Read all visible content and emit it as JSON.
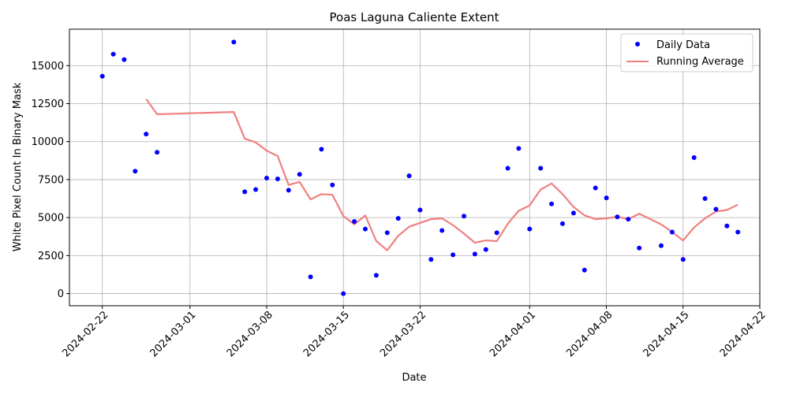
{
  "chart_data": {
    "type": "scatter",
    "title": "Poas Laguna Caliente Extent",
    "xlabel": "Date",
    "ylabel": "White Pixel Count In Binary Mask",
    "x_ticks": [
      "2024-02-22",
      "2024-03-01",
      "2024-03-08",
      "2024-03-15",
      "2024-03-22",
      "2024-04-01",
      "2024-04-08",
      "2024-04-15",
      "2024-04-22"
    ],
    "y_ticks": [
      0,
      2500,
      5000,
      7500,
      10000,
      12500,
      15000
    ],
    "xlim": [
      "2024-02-19",
      "2024-04-22"
    ],
    "ylim": [
      -800,
      17400
    ],
    "grid": true,
    "legend": {
      "placement": "top-right",
      "entries": [
        "Daily Data",
        "Running Average"
      ]
    },
    "series": [
      {
        "name": "Daily Data",
        "kind": "scatter",
        "color": "#0000ff",
        "points": [
          [
            "2024-02-22",
            14300
          ],
          [
            "2024-02-23",
            15750
          ],
          [
            "2024-02-24",
            15400
          ],
          [
            "2024-02-25",
            8050
          ],
          [
            "2024-02-26",
            10500
          ],
          [
            "2024-02-27",
            9300
          ],
          [
            "2024-03-05",
            16550
          ],
          [
            "2024-03-06",
            6700
          ],
          [
            "2024-03-07",
            6850
          ],
          [
            "2024-03-08",
            7600
          ],
          [
            "2024-03-09",
            7550
          ],
          [
            "2024-03-10",
            6800
          ],
          [
            "2024-03-11",
            7850
          ],
          [
            "2024-03-12",
            1100
          ],
          [
            "2024-03-13",
            9500
          ],
          [
            "2024-03-14",
            7150
          ],
          [
            "2024-03-15",
            0
          ],
          [
            "2024-03-16",
            4750
          ],
          [
            "2024-03-17",
            4250
          ],
          [
            "2024-03-18",
            1200
          ],
          [
            "2024-03-19",
            4000
          ],
          [
            "2024-03-20",
            4950
          ],
          [
            "2024-03-21",
            7750
          ],
          [
            "2024-03-22",
            5500
          ],
          [
            "2024-03-23",
            2250
          ],
          [
            "2024-03-24",
            4150
          ],
          [
            "2024-03-25",
            2550
          ],
          [
            "2024-03-26",
            5100
          ],
          [
            "2024-03-27",
            2600
          ],
          [
            "2024-03-28",
            2900
          ],
          [
            "2024-03-29",
            4000
          ],
          [
            "2024-03-30",
            8250
          ],
          [
            "2024-03-31",
            9550
          ],
          [
            "2024-04-01",
            4250
          ],
          [
            "2024-04-02",
            8250
          ],
          [
            "2024-04-03",
            5900
          ],
          [
            "2024-04-04",
            4600
          ],
          [
            "2024-04-05",
            5300
          ],
          [
            "2024-04-06",
            1550
          ],
          [
            "2024-04-07",
            6950
          ],
          [
            "2024-04-08",
            6300
          ],
          [
            "2024-04-09",
            5050
          ],
          [
            "2024-04-10",
            4900
          ],
          [
            "2024-04-11",
            3000
          ],
          [
            "2024-04-13",
            3150
          ],
          [
            "2024-04-14",
            4050
          ],
          [
            "2024-04-15",
            2250
          ],
          [
            "2024-04-16",
            8950
          ],
          [
            "2024-04-17",
            6250
          ],
          [
            "2024-04-18",
            5550
          ],
          [
            "2024-04-19",
            4450
          ],
          [
            "2024-04-20",
            4050
          ]
        ]
      },
      {
        "name": "Running Average",
        "kind": "line",
        "color": "#f08080",
        "points": [
          [
            "2024-02-26",
            12800
          ],
          [
            "2024-02-27",
            11800
          ],
          [
            "2024-03-05",
            11950
          ],
          [
            "2024-03-06",
            10200
          ],
          [
            "2024-03-07",
            9950
          ],
          [
            "2024-03-08",
            9400
          ],
          [
            "2024-03-09",
            9050
          ],
          [
            "2024-03-10",
            7150
          ],
          [
            "2024-03-11",
            7350
          ],
          [
            "2024-03-12",
            6200
          ],
          [
            "2024-03-13",
            6550
          ],
          [
            "2024-03-14",
            6500
          ],
          [
            "2024-03-15",
            5100
          ],
          [
            "2024-03-16",
            4550
          ],
          [
            "2024-03-17",
            5150
          ],
          [
            "2024-03-18",
            3450
          ],
          [
            "2024-03-19",
            2850
          ],
          [
            "2024-03-20",
            3800
          ],
          [
            "2024-03-21",
            4400
          ],
          [
            "2024-03-22",
            4650
          ],
          [
            "2024-03-23",
            4900
          ],
          [
            "2024-03-24",
            4950
          ],
          [
            "2024-03-25",
            4500
          ],
          [
            "2024-03-26",
            3950
          ],
          [
            "2024-03-27",
            3350
          ],
          [
            "2024-03-28",
            3500
          ],
          [
            "2024-03-29",
            3450
          ],
          [
            "2024-03-30",
            4600
          ],
          [
            "2024-03-31",
            5450
          ],
          [
            "2024-04-01",
            5800
          ],
          [
            "2024-04-02",
            6850
          ],
          [
            "2024-04-03",
            7250
          ],
          [
            "2024-04-04",
            6550
          ],
          [
            "2024-04-05",
            5700
          ],
          [
            "2024-04-06",
            5150
          ],
          [
            "2024-04-07",
            4900
          ],
          [
            "2024-04-08",
            4950
          ],
          [
            "2024-04-09",
            5050
          ],
          [
            "2024-04-10",
            4900
          ],
          [
            "2024-04-11",
            5250
          ],
          [
            "2024-04-13",
            4550
          ],
          [
            "2024-04-14",
            4050
          ],
          [
            "2024-04-15",
            3500
          ],
          [
            "2024-04-16",
            4350
          ],
          [
            "2024-04-17",
            4950
          ],
          [
            "2024-04-18",
            5400
          ],
          [
            "2024-04-19",
            5500
          ],
          [
            "2024-04-20",
            5850
          ]
        ]
      }
    ]
  }
}
